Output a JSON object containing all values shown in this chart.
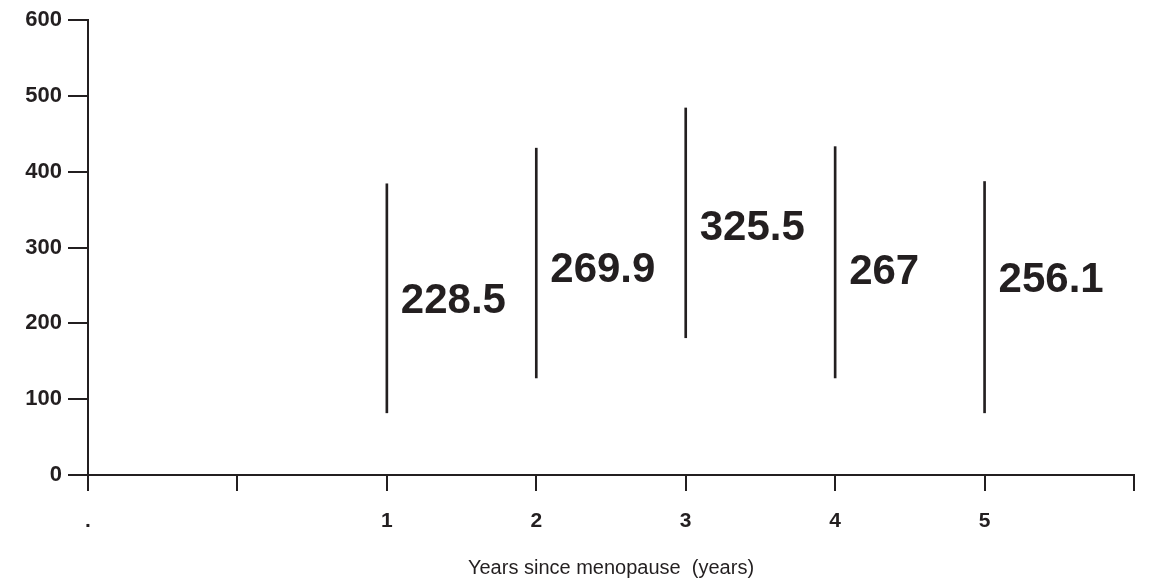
{
  "chart_data": {
    "type": "bar",
    "xlabel": "Years since menopause  (years)",
    "x": [
      1,
      2,
      3,
      4,
      5
    ],
    "base": [
      82,
      128,
      181,
      128,
      82
    ],
    "values": [
      302,
      303,
      303,
      305,
      305
    ],
    "color": "#231f20",
    "annotations": [
      {
        "text": "228.5",
        "x": 1,
        "y": 228.5
      },
      {
        "text": "269.9",
        "x": 2,
        "y": 269.9
      },
      {
        "text": "325.5",
        "x": 3,
        "y": 325.5
      },
      {
        "text": "267",
        "x": 4,
        "y": 267
      },
      {
        "text": "256.1",
        "x": 5,
        "y": 256.1
      }
    ],
    "xlim": [
      -1,
      6
    ],
    "xticks": [
      {
        "value": -1,
        "label": "."
      },
      {
        "value": 0,
        "label": null
      },
      1,
      2,
      3,
      4,
      5,
      {
        "value": 6,
        "label": null
      }
    ],
    "ylim": [
      0,
      600
    ],
    "yticks": [
      0,
      100,
      200,
      300,
      400,
      500,
      600
    ]
  }
}
